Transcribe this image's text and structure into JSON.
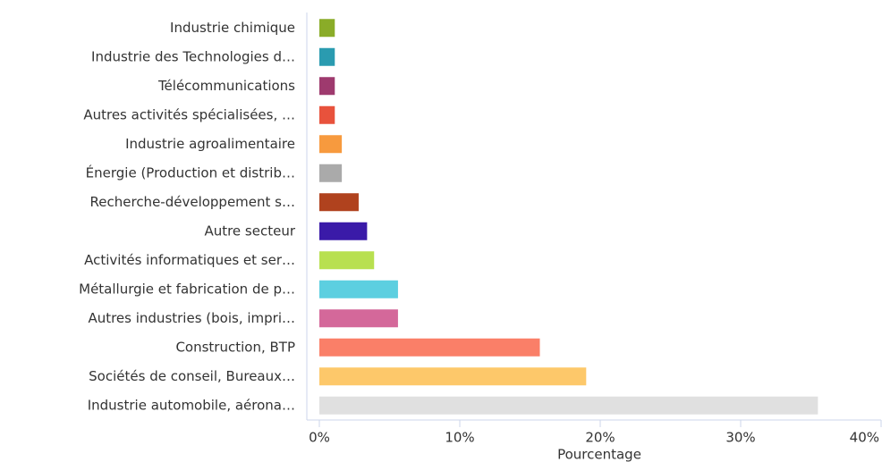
{
  "chart_data": {
    "type": "barh",
    "categories": [
      "Industrie chimique",
      "Industrie des Technologies d…",
      "Télécommunications",
      "Autres activités spécialisées, …",
      "Industrie agroalimentaire",
      "Énergie (Production et distrib…",
      "Recherche-développement s…",
      "Autre secteur",
      "Activités informatiques et ser…",
      "Métallurgie et fabrication de p…",
      "Autres industries (bois, impri…",
      "Construction, BTP",
      "Sociétés de conseil, Bureaux…",
      "Industrie automobile, aérona…"
    ],
    "values": [
      1.1,
      1.1,
      1.1,
      1.1,
      1.6,
      1.6,
      2.8,
      3.4,
      3.9,
      5.6,
      5.6,
      15.7,
      19.0,
      35.5
    ],
    "colors": [
      "#8aac28",
      "#2a9bb0",
      "#9e3a6e",
      "#e8523c",
      "#f79a3e",
      "#aaaaaa",
      "#b0421e",
      "#3a1aa8",
      "#b8e050",
      "#5ccfe0",
      "#d4689a",
      "#fa7f68",
      "#fdc86a",
      "#e0e0e0"
    ],
    "xlabel": "Pourcentage",
    "xlim": [
      0,
      40
    ],
    "xticks": [
      {
        "value": 0,
        "label": "0%"
      },
      {
        "value": 10,
        "label": "10%"
      },
      {
        "value": 20,
        "label": "20%"
      },
      {
        "value": 30,
        "label": "30%"
      },
      {
        "value": 40,
        "label": "40%"
      }
    ],
    "grid": false
  }
}
